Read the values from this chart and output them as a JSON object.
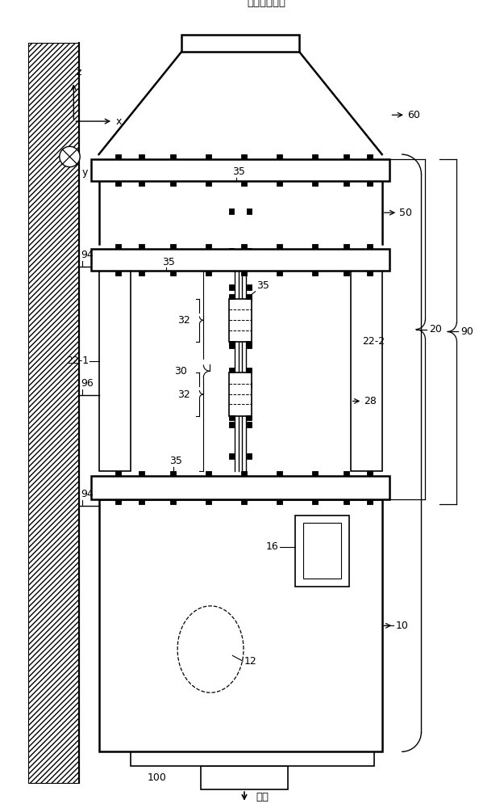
{
  "bg_color": "#ffffff",
  "lc": "#000000",
  "fig_w": 5.94,
  "fig_h": 10.0,
  "dpi": 100,
  "labels": {
    "exhaust": "洗净后的排气",
    "drain": "排水",
    "60": "60",
    "50": "50",
    "35": "35",
    "32": "32",
    "30": "30",
    "22_1": "22-1",
    "22_2": "22-2",
    "20": "20",
    "28": "28",
    "90": "90",
    "94": "94",
    "96": "96",
    "16": "16",
    "10": "10",
    "12": "12",
    "100": "100",
    "z": "z",
    "x": "x",
    "y": "y"
  }
}
